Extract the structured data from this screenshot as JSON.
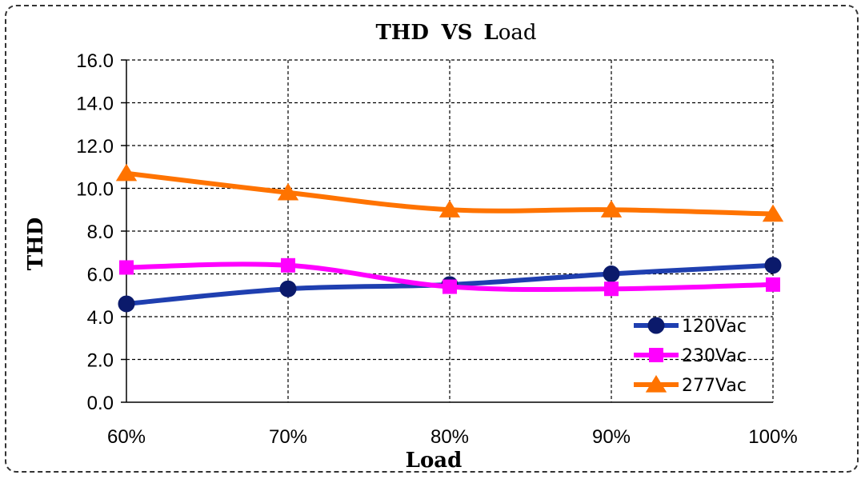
{
  "chart_data": {
    "type": "line",
    "title": "THD VS Load",
    "xlabel": "Load",
    "ylabel": "THD",
    "categories": [
      "60%",
      "70%",
      "80%",
      "90%",
      "100%"
    ],
    "ylim": [
      0,
      16
    ],
    "yticks": [
      "0.0",
      "2.0",
      "4.0",
      "6.0",
      "8.0",
      "10.0",
      "12.0",
      "14.0",
      "16.0"
    ],
    "grid": true,
    "legend_position": "bottom-right",
    "series": [
      {
        "name": "120Vac",
        "color": "#1f3fb0",
        "marker": "circle",
        "values": [
          4.6,
          5.3,
          5.5,
          6.0,
          6.4
        ]
      },
      {
        "name": "230Vac",
        "color": "#ff00ff",
        "marker": "square",
        "values": [
          6.3,
          6.4,
          5.4,
          5.3,
          5.5
        ]
      },
      {
        "name": "277Vac",
        "color": "#ff7300",
        "marker": "triangle",
        "values": [
          10.7,
          9.8,
          9.0,
          9.0,
          8.8
        ]
      }
    ]
  }
}
